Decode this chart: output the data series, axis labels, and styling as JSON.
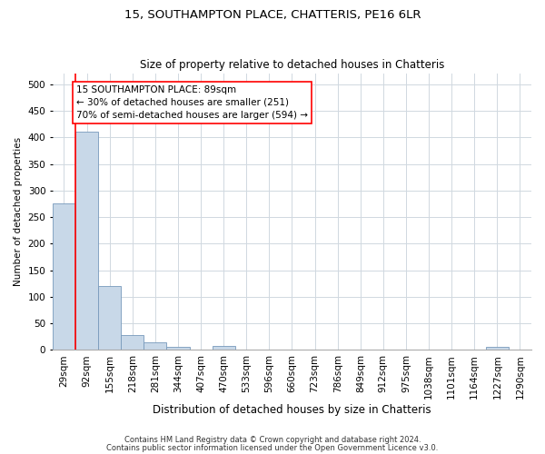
{
  "title1": "15, SOUTHAMPTON PLACE, CHATTERIS, PE16 6LR",
  "title2": "Size of property relative to detached houses in Chatteris",
  "xlabel": "Distribution of detached houses by size in Chatteris",
  "ylabel": "Number of detached properties",
  "footnote1": "Contains HM Land Registry data © Crown copyright and database right 2024.",
  "footnote2": "Contains public sector information licensed under the Open Government Licence v3.0.",
  "bar_labels": [
    "29sqm",
    "92sqm",
    "155sqm",
    "218sqm",
    "281sqm",
    "344sqm",
    "407sqm",
    "470sqm",
    "533sqm",
    "596sqm",
    "660sqm",
    "723sqm",
    "786sqm",
    "849sqm",
    "912sqm",
    "975sqm",
    "1038sqm",
    "1101sqm",
    "1164sqm",
    "1227sqm",
    "1290sqm"
  ],
  "bar_heights": [
    275,
    410,
    120,
    28,
    14,
    5,
    0,
    7,
    0,
    0,
    0,
    0,
    0,
    0,
    0,
    0,
    0,
    0,
    0,
    6,
    0
  ],
  "bar_color": "#c8d8e8",
  "bar_edge_color": "#7799bb",
  "grid_color": "#d0d8e0",
  "annotation_text": "15 SOUTHAMPTON PLACE: 89sqm\n← 30% of detached houses are smaller (251)\n70% of semi-detached houses are larger (594) →",
  "annotation_box_color": "white",
  "annotation_box_edge": "red",
  "vline_color": "red",
  "ylim": [
    0,
    520
  ],
  "yticks": [
    0,
    50,
    100,
    150,
    200,
    250,
    300,
    350,
    400,
    450,
    500
  ],
  "bg_color": "#ffffff",
  "title1_fontsize": 9.5,
  "title2_fontsize": 8.5,
  "xlabel_fontsize": 8.5,
  "ylabel_fontsize": 7.5,
  "tick_fontsize": 7.5,
  "annot_fontsize": 7.5,
  "footnote_fontsize": 6.0
}
